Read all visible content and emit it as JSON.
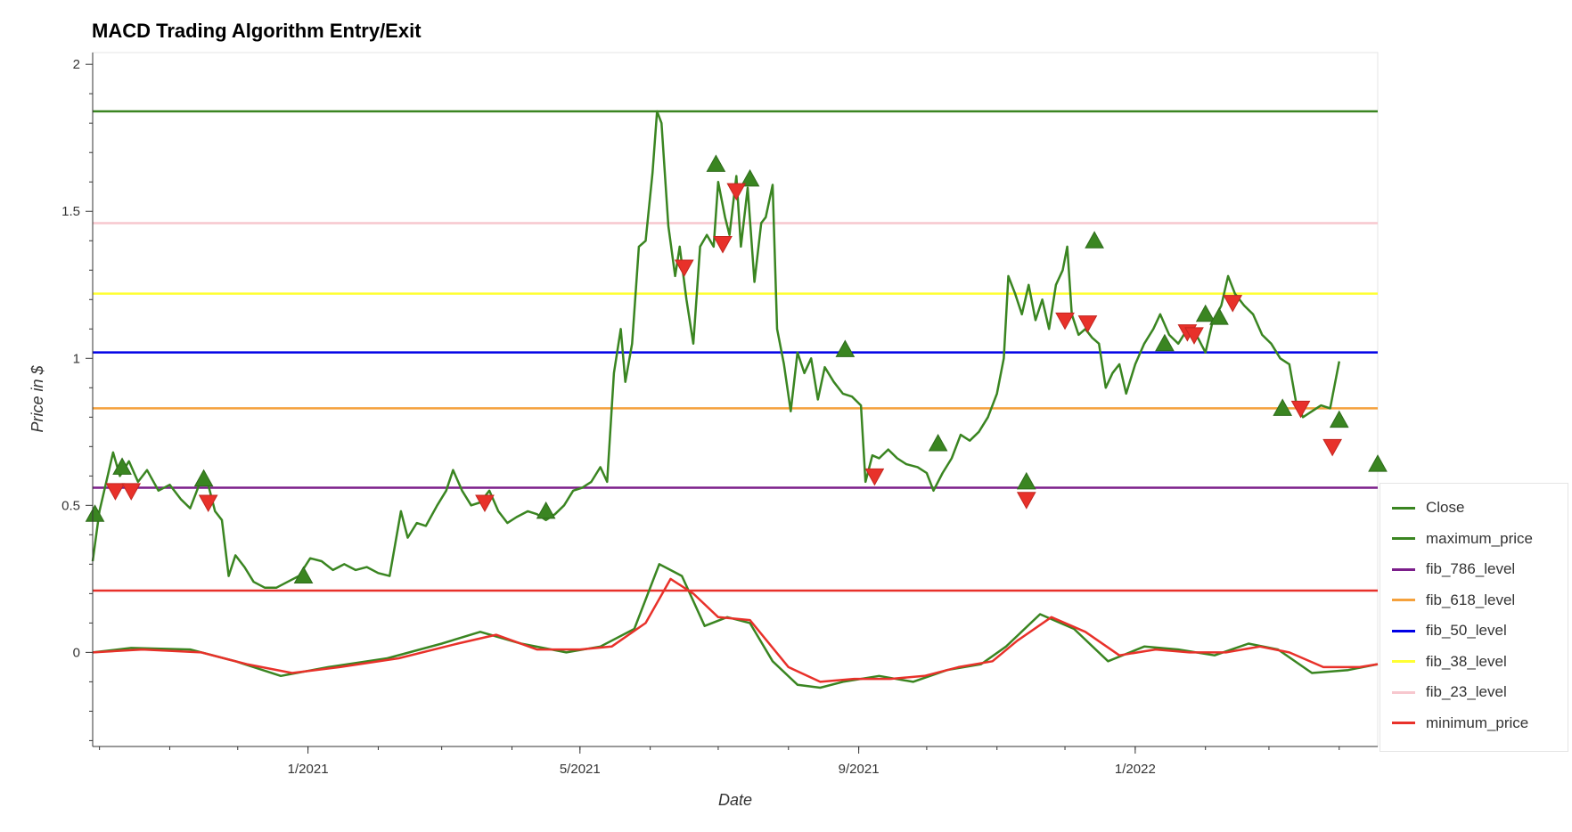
{
  "chart_data": {
    "type": "line",
    "title": "MACD Trading Algorithm Entry/Exit",
    "xlabel": "Date",
    "ylabel": "Price in $",
    "xlim": [
      "2020-09-28",
      "2022-04-18"
    ],
    "ylim": [
      -0.32,
      2.04
    ],
    "x_ticks": [
      "2021-01-01",
      "2021-05-01",
      "2021-09-01",
      "2022-01-01"
    ],
    "x_tick_labels": [
      "1/2021",
      "5/2021",
      "9/2021",
      "1/2022"
    ],
    "y_ticks": [
      0,
      0.5,
      1,
      1.5,
      2
    ],
    "y_tick_labels": [
      "0",
      "0.5",
      "1",
      "1.5",
      "2"
    ],
    "grid": false,
    "legend_position": "right",
    "series": [
      {
        "name": "Close",
        "color": "#3a8521",
        "points": [
          [
            "2020-09-28",
            0.31
          ],
          [
            "2020-10-01",
            0.48
          ],
          [
            "2020-10-04",
            0.58
          ],
          [
            "2020-10-07",
            0.68
          ],
          [
            "2020-10-10",
            0.6
          ],
          [
            "2020-10-14",
            0.65
          ],
          [
            "2020-10-18",
            0.58
          ],
          [
            "2020-10-22",
            0.62
          ],
          [
            "2020-10-27",
            0.55
          ],
          [
            "2020-11-01",
            0.57
          ],
          [
            "2020-11-06",
            0.52
          ],
          [
            "2020-11-10",
            0.49
          ],
          [
            "2020-11-14",
            0.57
          ],
          [
            "2020-11-18",
            0.57
          ],
          [
            "2020-11-21",
            0.48
          ],
          [
            "2020-11-24",
            0.45
          ],
          [
            "2020-11-27",
            0.26
          ],
          [
            "2020-11-30",
            0.33
          ],
          [
            "2020-12-04",
            0.29
          ],
          [
            "2020-12-08",
            0.24
          ],
          [
            "2020-12-13",
            0.22
          ],
          [
            "2020-12-18",
            0.22
          ],
          [
            "2020-12-23",
            0.24
          ],
          [
            "2020-12-28",
            0.26
          ],
          [
            "2021-01-02",
            0.32
          ],
          [
            "2021-01-07",
            0.31
          ],
          [
            "2021-01-12",
            0.28
          ],
          [
            "2021-01-17",
            0.3
          ],
          [
            "2021-01-22",
            0.28
          ],
          [
            "2021-01-27",
            0.29
          ],
          [
            "2021-02-01",
            0.27
          ],
          [
            "2021-02-06",
            0.26
          ],
          [
            "2021-02-11",
            0.48
          ],
          [
            "2021-02-14",
            0.39
          ],
          [
            "2021-02-18",
            0.44
          ],
          [
            "2021-02-22",
            0.43
          ],
          [
            "2021-02-27",
            0.5
          ],
          [
            "2021-03-03",
            0.55
          ],
          [
            "2021-03-06",
            0.62
          ],
          [
            "2021-03-10",
            0.55
          ],
          [
            "2021-03-14",
            0.5
          ],
          [
            "2021-03-18",
            0.51
          ],
          [
            "2021-03-22",
            0.55
          ],
          [
            "2021-03-26",
            0.48
          ],
          [
            "2021-03-30",
            0.44
          ],
          [
            "2021-04-03",
            0.46
          ],
          [
            "2021-04-08",
            0.48
          ],
          [
            "2021-04-12",
            0.47
          ],
          [
            "2021-04-16",
            0.45
          ],
          [
            "2021-04-20",
            0.47
          ],
          [
            "2021-04-24",
            0.5
          ],
          [
            "2021-04-28",
            0.55
          ],
          [
            "2021-05-02",
            0.56
          ],
          [
            "2021-05-06",
            0.58
          ],
          [
            "2021-05-10",
            0.63
          ],
          [
            "2021-05-13",
            0.58
          ],
          [
            "2021-05-16",
            0.95
          ],
          [
            "2021-05-19",
            1.1
          ],
          [
            "2021-05-21",
            0.92
          ],
          [
            "2021-05-24",
            1.05
          ],
          [
            "2021-05-27",
            1.38
          ],
          [
            "2021-05-30",
            1.4
          ],
          [
            "2021-06-02",
            1.63
          ],
          [
            "2021-06-04",
            1.84
          ],
          [
            "2021-06-06",
            1.8
          ],
          [
            "2021-06-09",
            1.45
          ],
          [
            "2021-06-12",
            1.28
          ],
          [
            "2021-06-14",
            1.38
          ],
          [
            "2021-06-17",
            1.2
          ],
          [
            "2021-06-20",
            1.05
          ],
          [
            "2021-06-23",
            1.38
          ],
          [
            "2021-06-26",
            1.42
          ],
          [
            "2021-06-29",
            1.38
          ],
          [
            "2021-07-01",
            1.6
          ],
          [
            "2021-07-04",
            1.48
          ],
          [
            "2021-07-06",
            1.42
          ],
          [
            "2021-07-09",
            1.62
          ],
          [
            "2021-07-11",
            1.38
          ],
          [
            "2021-07-14",
            1.58
          ],
          [
            "2021-07-17",
            1.26
          ],
          [
            "2021-07-20",
            1.46
          ],
          [
            "2021-07-22",
            1.48
          ],
          [
            "2021-07-25",
            1.59
          ],
          [
            "2021-07-27",
            1.1
          ],
          [
            "2021-07-30",
            0.98
          ],
          [
            "2021-08-02",
            0.82
          ],
          [
            "2021-08-05",
            1.02
          ],
          [
            "2021-08-08",
            0.95
          ],
          [
            "2021-08-11",
            1.0
          ],
          [
            "2021-08-14",
            0.86
          ],
          [
            "2021-08-17",
            0.97
          ],
          [
            "2021-08-21",
            0.92
          ],
          [
            "2021-08-25",
            0.88
          ],
          [
            "2021-08-29",
            0.87
          ],
          [
            "2021-09-02",
            0.84
          ],
          [
            "2021-09-04",
            0.58
          ],
          [
            "2021-09-07",
            0.67
          ],
          [
            "2021-09-10",
            0.66
          ],
          [
            "2021-09-14",
            0.69
          ],
          [
            "2021-09-18",
            0.66
          ],
          [
            "2021-09-22",
            0.64
          ],
          [
            "2021-09-27",
            0.63
          ],
          [
            "2021-10-01",
            0.61
          ],
          [
            "2021-10-04",
            0.55
          ],
          [
            "2021-10-08",
            0.61
          ],
          [
            "2021-10-12",
            0.66
          ],
          [
            "2021-10-16",
            0.74
          ],
          [
            "2021-10-20",
            0.72
          ],
          [
            "2021-10-24",
            0.75
          ],
          [
            "2021-10-28",
            0.8
          ],
          [
            "2021-11-01",
            0.88
          ],
          [
            "2021-11-04",
            1.0
          ],
          [
            "2021-11-06",
            1.28
          ],
          [
            "2021-11-09",
            1.22
          ],
          [
            "2021-11-12",
            1.15
          ],
          [
            "2021-11-15",
            1.25
          ],
          [
            "2021-11-18",
            1.13
          ],
          [
            "2021-11-21",
            1.2
          ],
          [
            "2021-11-24",
            1.1
          ],
          [
            "2021-11-27",
            1.25
          ],
          [
            "2021-11-30",
            1.3
          ],
          [
            "2021-12-02",
            1.38
          ],
          [
            "2021-12-04",
            1.15
          ],
          [
            "2021-12-07",
            1.08
          ],
          [
            "2021-12-10",
            1.1
          ],
          [
            "2021-12-13",
            1.07
          ],
          [
            "2021-12-16",
            1.05
          ],
          [
            "2021-12-19",
            0.9
          ],
          [
            "2021-12-22",
            0.95
          ],
          [
            "2021-12-25",
            0.98
          ],
          [
            "2021-12-28",
            0.88
          ],
          [
            "2022-01-01",
            0.98
          ],
          [
            "2022-01-05",
            1.05
          ],
          [
            "2022-01-09",
            1.1
          ],
          [
            "2022-01-12",
            1.15
          ],
          [
            "2022-01-16",
            1.08
          ],
          [
            "2022-01-20",
            1.05
          ],
          [
            "2022-01-24",
            1.1
          ],
          [
            "2022-01-28",
            1.08
          ],
          [
            "2022-02-01",
            1.02
          ],
          [
            "2022-02-04",
            1.12
          ],
          [
            "2022-02-08",
            1.18
          ],
          [
            "2022-02-11",
            1.28
          ],
          [
            "2022-02-14",
            1.22
          ],
          [
            "2022-02-18",
            1.18
          ],
          [
            "2022-02-22",
            1.15
          ],
          [
            "2022-02-26",
            1.08
          ],
          [
            "2022-03-02",
            1.05
          ],
          [
            "2022-03-06",
            1.0
          ],
          [
            "2022-03-10",
            0.98
          ],
          [
            "2022-03-13",
            0.85
          ],
          [
            "2022-03-16",
            0.8
          ],
          [
            "2022-03-20",
            0.82
          ],
          [
            "2022-03-24",
            0.84
          ],
          [
            "2022-03-28",
            0.83
          ],
          [
            "2022-04-01",
            0.99
          ]
        ]
      },
      {
        "name": "maximum_price",
        "color": "#3a8521",
        "value": 1.84
      },
      {
        "name": "fib_786_level",
        "color": "#7b1e8a",
        "value": 0.56
      },
      {
        "name": "fib_618_level",
        "color": "#f5a13c",
        "value": 0.83
      },
      {
        "name": "fib_50_level",
        "color": "#0000e6",
        "value": 1.02
      },
      {
        "name": "fib_38_level",
        "color": "#ffff33",
        "value": 1.22
      },
      {
        "name": "fib_23_level",
        "color": "#f7c7ce",
        "value": 1.46
      },
      {
        "name": "minimum_price",
        "color": "#e8312a",
        "value": 0.21
      }
    ],
    "macd": {
      "macd_color": "#3a8521",
      "signal_color": "#e8312a",
      "macd": [
        [
          "2020-09-28",
          0.0
        ],
        [
          "2020-10-15",
          0.015
        ],
        [
          "2020-11-10",
          0.01
        ],
        [
          "2020-11-30",
          -0.03
        ],
        [
          "2020-12-20",
          -0.08
        ],
        [
          "2021-01-10",
          -0.05
        ],
        [
          "2021-02-05",
          -0.02
        ],
        [
          "2021-03-01",
          0.03
        ],
        [
          "2021-03-18",
          0.07
        ],
        [
          "2021-04-05",
          0.03
        ],
        [
          "2021-04-25",
          0.0
        ],
        [
          "2021-05-10",
          0.02
        ],
        [
          "2021-05-25",
          0.08
        ],
        [
          "2021-06-05",
          0.3
        ],
        [
          "2021-06-15",
          0.26
        ],
        [
          "2021-06-25",
          0.09
        ],
        [
          "2021-07-05",
          0.12
        ],
        [
          "2021-07-15",
          0.1
        ],
        [
          "2021-07-25",
          -0.03
        ],
        [
          "2021-08-05",
          -0.11
        ],
        [
          "2021-08-15",
          -0.12
        ],
        [
          "2021-08-25",
          -0.1
        ],
        [
          "2021-09-10",
          -0.08
        ],
        [
          "2021-09-25",
          -0.1
        ],
        [
          "2021-10-10",
          -0.06
        ],
        [
          "2021-10-25",
          -0.04
        ],
        [
          "2021-11-05",
          0.02
        ],
        [
          "2021-11-20",
          0.13
        ],
        [
          "2021-12-05",
          0.08
        ],
        [
          "2021-12-20",
          -0.03
        ],
        [
          "2022-01-05",
          0.02
        ],
        [
          "2022-01-20",
          0.01
        ],
        [
          "2022-02-05",
          -0.01
        ],
        [
          "2022-02-20",
          0.03
        ],
        [
          "2022-03-05",
          0.01
        ],
        [
          "2022-03-20",
          -0.07
        ],
        [
          "2022-04-05",
          -0.06
        ],
        [
          "2022-04-18",
          -0.04
        ]
      ],
      "signal": [
        [
          "2020-09-28",
          0.0
        ],
        [
          "2020-10-20",
          0.01
        ],
        [
          "2020-11-15",
          0.0
        ],
        [
          "2020-12-05",
          -0.04
        ],
        [
          "2020-12-25",
          -0.07
        ],
        [
          "2021-01-15",
          -0.05
        ],
        [
          "2021-02-10",
          -0.02
        ],
        [
          "2021-03-08",
          0.03
        ],
        [
          "2021-03-25",
          0.06
        ],
        [
          "2021-04-12",
          0.01
        ],
        [
          "2021-05-01",
          0.01
        ],
        [
          "2021-05-15",
          0.02
        ],
        [
          "2021-05-30",
          0.1
        ],
        [
          "2021-06-10",
          0.25
        ],
        [
          "2021-06-20",
          0.2
        ],
        [
          "2021-07-01",
          0.12
        ],
        [
          "2021-07-15",
          0.11
        ],
        [
          "2021-08-01",
          -0.05
        ],
        [
          "2021-08-15",
          -0.1
        ],
        [
          "2021-08-30",
          -0.09
        ],
        [
          "2021-09-15",
          -0.09
        ],
        [
          "2021-09-30",
          -0.08
        ],
        [
          "2021-10-15",
          -0.05
        ],
        [
          "2021-10-30",
          -0.03
        ],
        [
          "2021-11-10",
          0.04
        ],
        [
          "2021-11-25",
          0.12
        ],
        [
          "2021-12-10",
          0.07
        ],
        [
          "2021-12-25",
          -0.01
        ],
        [
          "2022-01-10",
          0.01
        ],
        [
          "2022-01-25",
          0.0
        ],
        [
          "2022-02-10",
          0.0
        ],
        [
          "2022-02-25",
          0.02
        ],
        [
          "2022-03-10",
          0.0
        ],
        [
          "2022-03-25",
          -0.05
        ],
        [
          "2022-04-10",
          -0.05
        ],
        [
          "2022-04-18",
          -0.04
        ]
      ]
    },
    "entry_points": [
      [
        "2020-09-29",
        0.47
      ],
      [
        "2020-10-11",
        0.63
      ],
      [
        "2020-11-16",
        0.59
      ],
      [
        "2020-12-30",
        0.26
      ],
      [
        "2021-04-16",
        0.48
      ],
      [
        "2021-06-30",
        1.66
      ],
      [
        "2021-07-15",
        1.61
      ],
      [
        "2021-08-26",
        1.03
      ],
      [
        "2021-10-06",
        0.71
      ],
      [
        "2021-11-14",
        0.58
      ],
      [
        "2021-12-14",
        1.4
      ],
      [
        "2022-01-14",
        1.05
      ],
      [
        "2022-02-01",
        1.15
      ],
      [
        "2022-02-07",
        1.14
      ],
      [
        "2022-03-07",
        0.83
      ],
      [
        "2022-04-01",
        0.79
      ],
      [
        "2022-04-18",
        0.64
      ]
    ],
    "exit_points": [
      [
        "2020-10-08",
        0.55
      ],
      [
        "2020-10-15",
        0.55
      ],
      [
        "2020-11-18",
        0.51
      ],
      [
        "2021-03-20",
        0.51
      ],
      [
        "2021-06-16",
        1.31
      ],
      [
        "2021-07-03",
        1.39
      ],
      [
        "2021-07-09",
        1.57
      ],
      [
        "2021-09-08",
        0.6
      ],
      [
        "2021-11-14",
        0.52
      ],
      [
        "2021-12-01",
        1.13
      ],
      [
        "2021-12-11",
        1.12
      ],
      [
        "2022-01-24",
        1.09
      ],
      [
        "2022-01-27",
        1.08
      ],
      [
        "2022-02-13",
        1.19
      ],
      [
        "2022-03-15",
        0.83
      ],
      [
        "2022-03-29",
        0.7
      ]
    ]
  }
}
